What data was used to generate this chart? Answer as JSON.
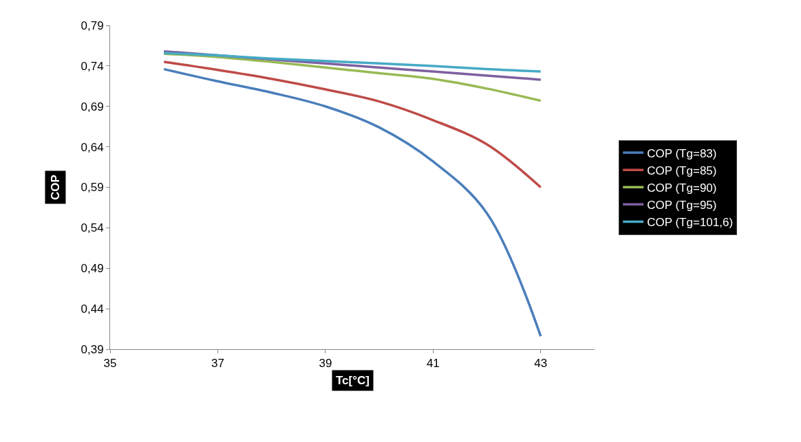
{
  "chart_data": {
    "type": "line",
    "xlabel": "Tc[°C]",
    "ylabel": "COP",
    "x": [
      36,
      37,
      38,
      39,
      40,
      41,
      42,
      43
    ],
    "series": [
      {
        "name": "COP (Tg=83)",
        "color": "#4a7ebb",
        "values": [
          0.736,
          0.721,
          0.707,
          0.69,
          0.664,
          0.622,
          0.558,
          0.406
        ]
      },
      {
        "name": "COP (Tg=85)",
        "color": "#be4b48",
        "values": [
          0.745,
          0.735,
          0.724,
          0.711,
          0.696,
          0.673,
          0.643,
          0.59
        ]
      },
      {
        "name": "COP (Tg=90)",
        "color": "#98b954",
        "values": [
          0.755,
          0.751,
          0.745,
          0.738,
          0.731,
          0.724,
          0.712,
          0.697
        ]
      },
      {
        "name": "COP (Tg=95)",
        "color": "#7d60a0",
        "values": [
          0.758,
          0.753,
          0.748,
          0.743,
          0.738,
          0.733,
          0.728,
          0.723
        ]
      },
      {
        "name": "COP (Tg=101,6)",
        "color": "#46aac5",
        "values": [
          0.756,
          0.753,
          0.749,
          0.746,
          0.743,
          0.74,
          0.736,
          0.733
        ]
      }
    ],
    "xlim": [
      35,
      44
    ],
    "xticks": [
      35,
      37,
      39,
      41,
      43
    ],
    "ylim": [
      0.39,
      0.79
    ],
    "yticks": [
      {
        "value": 0.39,
        "label": "0,39"
      },
      {
        "value": 0.44,
        "label": "0,44"
      },
      {
        "value": 0.49,
        "label": "0,49"
      },
      {
        "value": 0.54,
        "label": "0,54"
      },
      {
        "value": 0.59,
        "label": "0,59"
      },
      {
        "value": 0.64,
        "label": "0,64"
      },
      {
        "value": 0.69,
        "label": "0,69"
      },
      {
        "value": 0.74,
        "label": "0,74"
      },
      {
        "value": 0.79,
        "label": "0,79"
      }
    ],
    "legend": "right",
    "marker": "none",
    "line_style": "solid"
  }
}
